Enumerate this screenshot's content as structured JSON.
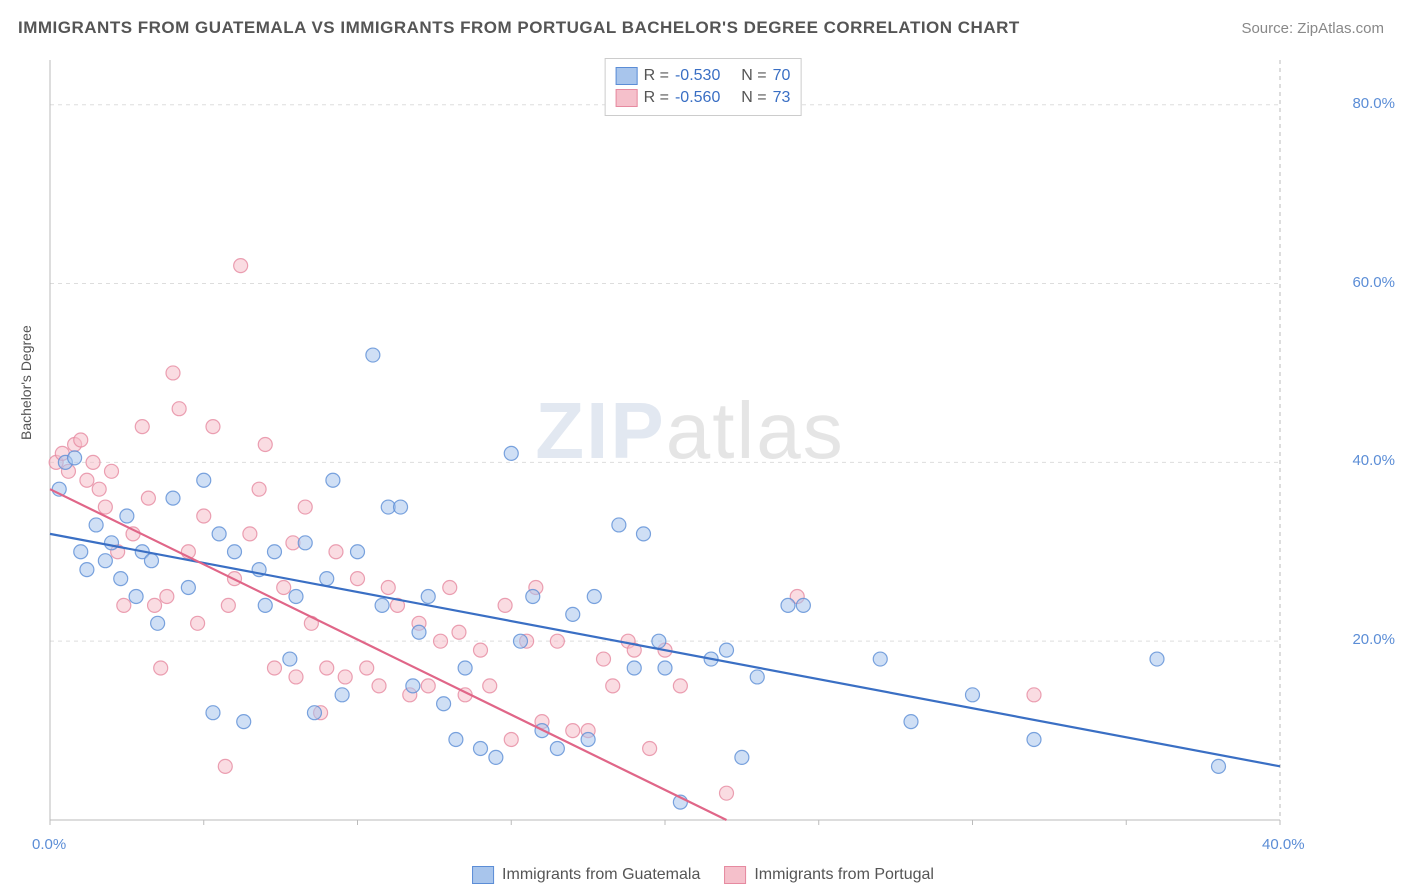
{
  "title": "IMMIGRANTS FROM GUATEMALA VS IMMIGRANTS FROM PORTUGAL BACHELOR'S DEGREE CORRELATION CHART",
  "source": "Source: ZipAtlas.com",
  "y_axis_label": "Bachelor's Degree",
  "watermark_a": "ZIP",
  "watermark_b": "atlas",
  "chart": {
    "type": "scatter",
    "xlim": [
      0,
      40
    ],
    "ylim": [
      0,
      85
    ],
    "x_ticks": [
      0,
      5,
      10,
      15,
      20,
      25,
      30,
      35,
      40
    ],
    "x_tick_labels": [
      "0.0%",
      "",
      "",
      "",
      "",
      "",
      "",
      "",
      "40.0%"
    ],
    "y_ticks": [
      20,
      40,
      60,
      80
    ],
    "y_tick_labels": [
      "20.0%",
      "40.0%",
      "60.0%",
      "80.0%"
    ],
    "grid_color": "#dddddd",
    "axis_color": "#bbbbbb",
    "background": "#ffffff",
    "marker_radius": 7,
    "marker_opacity": 0.55,
    "line_width": 2.2
  },
  "series": [
    {
      "name": "Immigrants from Guatemala",
      "color_fill": "#a8c5ec",
      "color_stroke": "#5b8dd6",
      "line_color": "#3a6fc4",
      "R": "-0.530",
      "N": "70",
      "trend": {
        "x1": 0,
        "y1": 32,
        "x2": 40,
        "y2": 6
      },
      "points": [
        [
          0.3,
          37
        ],
        [
          0.5,
          40
        ],
        [
          0.8,
          40.5
        ],
        [
          1,
          30
        ],
        [
          1.2,
          28
        ],
        [
          1.5,
          33
        ],
        [
          1.8,
          29
        ],
        [
          2,
          31
        ],
        [
          2.3,
          27
        ],
        [
          2.5,
          34
        ],
        [
          2.8,
          25
        ],
        [
          3,
          30
        ],
        [
          3.3,
          29
        ],
        [
          3.5,
          22
        ],
        [
          4,
          36
        ],
        [
          4.5,
          26
        ],
        [
          5,
          38
        ],
        [
          5.3,
          12
        ],
        [
          5.5,
          32
        ],
        [
          6,
          30
        ],
        [
          6.3,
          11
        ],
        [
          6.8,
          28
        ],
        [
          7,
          24
        ],
        [
          7.3,
          30
        ],
        [
          7.8,
          18
        ],
        [
          8,
          25
        ],
        [
          8.3,
          31
        ],
        [
          8.6,
          12
        ],
        [
          9,
          27
        ],
        [
          9.2,
          38
        ],
        [
          9.5,
          14
        ],
        [
          10,
          30
        ],
        [
          10.5,
          52
        ],
        [
          10.8,
          24
        ],
        [
          11,
          35
        ],
        [
          11.4,
          35
        ],
        [
          11.8,
          15
        ],
        [
          12,
          21
        ],
        [
          12.3,
          25
        ],
        [
          12.8,
          13
        ],
        [
          13.2,
          9
        ],
        [
          13.5,
          17
        ],
        [
          14,
          8
        ],
        [
          14.5,
          7
        ],
        [
          15,
          41
        ],
        [
          15.3,
          20
        ],
        [
          15.7,
          25
        ],
        [
          16,
          10
        ],
        [
          16.5,
          8
        ],
        [
          17,
          23
        ],
        [
          17.5,
          9
        ],
        [
          17.7,
          25
        ],
        [
          18.5,
          33
        ],
        [
          19,
          17
        ],
        [
          19.3,
          32
        ],
        [
          19.8,
          20
        ],
        [
          20,
          17
        ],
        [
          20.5,
          2
        ],
        [
          21.5,
          18
        ],
        [
          22,
          19
        ],
        [
          22.5,
          7
        ],
        [
          23,
          16
        ],
        [
          24,
          24
        ],
        [
          24.5,
          24
        ],
        [
          27,
          18
        ],
        [
          28,
          11
        ],
        [
          30,
          14
        ],
        [
          32,
          9
        ],
        [
          36,
          18
        ],
        [
          38,
          6
        ]
      ]
    },
    {
      "name": "Immigrants from Portugal",
      "color_fill": "#f5c0cb",
      "color_stroke": "#e68aa0",
      "line_color": "#e06688",
      "R": "-0.560",
      "N": "73",
      "trend": {
        "x1": 0,
        "y1": 37,
        "x2": 22,
        "y2": 0
      },
      "points": [
        [
          0.2,
          40
        ],
        [
          0.4,
          41
        ],
        [
          0.6,
          39
        ],
        [
          0.8,
          42
        ],
        [
          1,
          42.5
        ],
        [
          1.2,
          38
        ],
        [
          1.4,
          40
        ],
        [
          1.6,
          37
        ],
        [
          1.8,
          35
        ],
        [
          2,
          39
        ],
        [
          2.2,
          30
        ],
        [
          2.4,
          24
        ],
        [
          2.7,
          32
        ],
        [
          3,
          44
        ],
        [
          3.2,
          36
        ],
        [
          3.4,
          24
        ],
        [
          3.6,
          17
        ],
        [
          3.8,
          25
        ],
        [
          4,
          50
        ],
        [
          4.2,
          46
        ],
        [
          4.5,
          30
        ],
        [
          4.8,
          22
        ],
        [
          5,
          34
        ],
        [
          5.3,
          44
        ],
        [
          5.7,
          6
        ],
        [
          5.8,
          24
        ],
        [
          6,
          27
        ],
        [
          6.2,
          62
        ],
        [
          6.5,
          32
        ],
        [
          6.8,
          37
        ],
        [
          7,
          42
        ],
        [
          7.3,
          17
        ],
        [
          7.6,
          26
        ],
        [
          7.9,
          31
        ],
        [
          8,
          16
        ],
        [
          8.3,
          35
        ],
        [
          8.5,
          22
        ],
        [
          8.8,
          12
        ],
        [
          9,
          17
        ],
        [
          9.3,
          30
        ],
        [
          9.6,
          16
        ],
        [
          10,
          27
        ],
        [
          10.3,
          17
        ],
        [
          10.7,
          15
        ],
        [
          11,
          26
        ],
        [
          11.3,
          24
        ],
        [
          11.7,
          14
        ],
        [
          12,
          22
        ],
        [
          12.3,
          15
        ],
        [
          12.7,
          20
        ],
        [
          13,
          26
        ],
        [
          13.3,
          21
        ],
        [
          13.5,
          14
        ],
        [
          14,
          19
        ],
        [
          14.3,
          15
        ],
        [
          14.8,
          24
        ],
        [
          15,
          9
        ],
        [
          15.5,
          20
        ],
        [
          15.8,
          26
        ],
        [
          16,
          11
        ],
        [
          16.5,
          20
        ],
        [
          17,
          10
        ],
        [
          17.5,
          10
        ],
        [
          18,
          18
        ],
        [
          18.3,
          15
        ],
        [
          18.8,
          20
        ],
        [
          19,
          19
        ],
        [
          19.5,
          8
        ],
        [
          20,
          19
        ],
        [
          20.5,
          15
        ],
        [
          22,
          3
        ],
        [
          24.3,
          25
        ],
        [
          32,
          14
        ]
      ]
    }
  ],
  "legend_bottom": [
    {
      "label": "Immigrants from Guatemala",
      "fill": "#a8c5ec",
      "stroke": "#5b8dd6"
    },
    {
      "label": "Immigrants from Portugal",
      "fill": "#f5c0cb",
      "stroke": "#e68aa0"
    }
  ]
}
